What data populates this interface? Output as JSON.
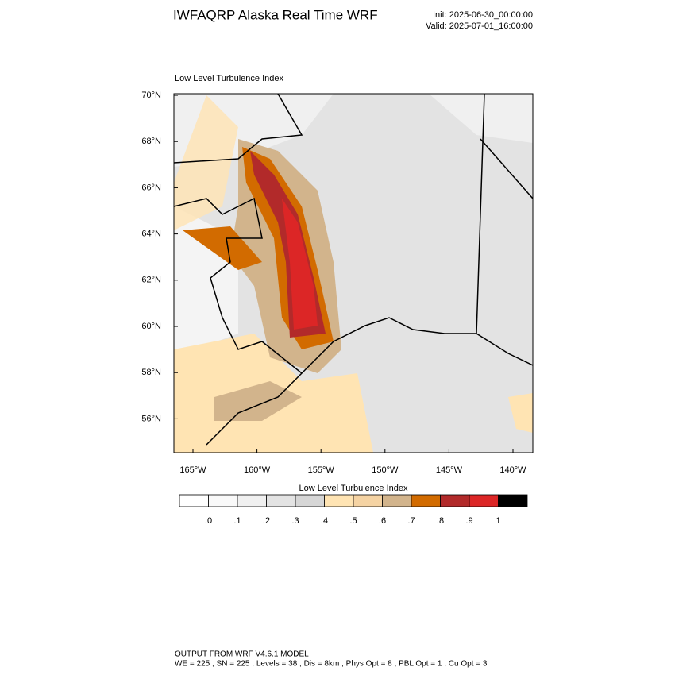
{
  "header": {
    "title": "IWFAQRP Alaska Real Time WRF",
    "init": "Init: 2025-06-30_00:00:00",
    "valid": "Valid: 2025-07-01_16:00:00"
  },
  "map": {
    "title": "Low Level Turbulence Index",
    "lat_labels": [
      "70°N",
      "68°N",
      "66°N",
      "64°N",
      "62°N",
      "60°N",
      "58°N",
      "56°N"
    ],
    "lon_labels": [
      "165°W",
      "160°W",
      "155°W",
      "150°W",
      "145°W",
      "140°W"
    ]
  },
  "colorbar": {
    "title": "Low Level Turbulence Index",
    "colors": [
      "#ffffff",
      "#f9f9f9",
      "#f0f0f0",
      "#e3e3e3",
      "#d6d6d6",
      "#ffe4b3",
      "#f5d3a3",
      "#d2b48c",
      "#d26b00",
      "#b22a2a",
      "#dc2626",
      "#000000"
    ],
    "labels": [
      ".0",
      ".1",
      ".2",
      ".3",
      ".4",
      ".5",
      ".6",
      ".7",
      ".8",
      ".9",
      "1"
    ]
  },
  "footer": {
    "line1": "OUTPUT FROM WRF V4.6.1 MODEL",
    "line2": "WE = 225 ; SN = 225 ; Levels = 38 ; Dis = 8km ; Phys Opt = 8 ; PBL Opt = 1 ; Cu Opt = 3"
  }
}
